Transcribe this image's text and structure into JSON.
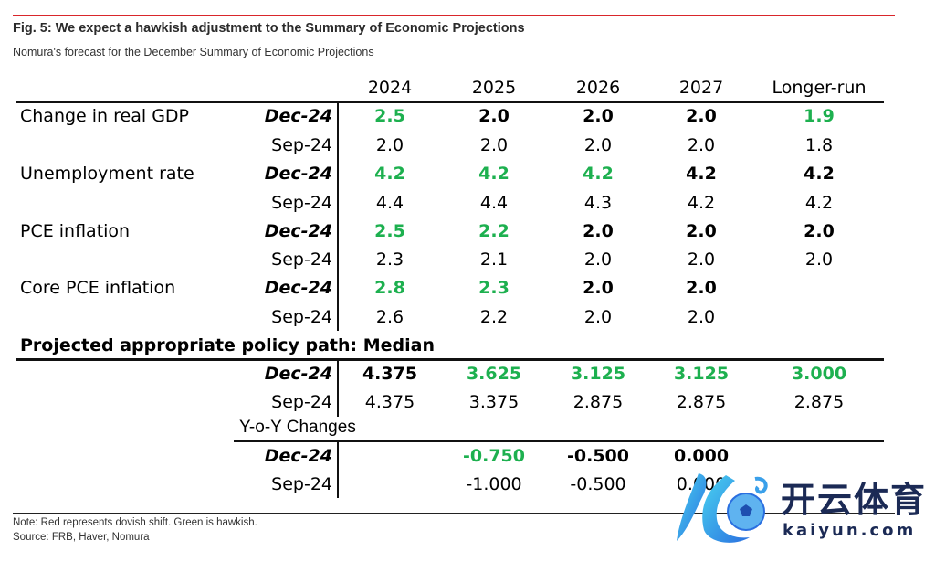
{
  "figure": {
    "title": "Fig. 5: We expect a hawkish adjustment to the Summary of Economic Projections",
    "subtitle": "Nomura's forecast for the December Summary of Economic Projections"
  },
  "columns": [
    "2024",
    "2025",
    "2026",
    "2027",
    "Longer-run"
  ],
  "colors": {
    "hawkish": "#1db04f",
    "dovish": "#d9262b",
    "topline": "#d9262b"
  },
  "rows": [
    {
      "label": "Change in real GDP",
      "vintage": "Dec-24",
      "values": [
        "2.5",
        "2.0",
        "2.0",
        "2.0",
        "1.9"
      ],
      "styles": [
        "green",
        "bold",
        "bold",
        "bold",
        "green"
      ]
    },
    {
      "label": "",
      "vintage": "Sep-24",
      "values": [
        "2.0",
        "2.0",
        "2.0",
        "2.0",
        "1.8"
      ]
    },
    {
      "label": "Unemployment rate",
      "vintage": "Dec-24",
      "values": [
        "4.2",
        "4.2",
        "4.2",
        "4.2",
        "4.2"
      ],
      "styles": [
        "green",
        "green",
        "green",
        "bold",
        "bold"
      ]
    },
    {
      "label": "",
      "vintage": "Sep-24",
      "values": [
        "4.4",
        "4.4",
        "4.3",
        "4.2",
        "4.2"
      ]
    },
    {
      "label": "PCE inflation",
      "vintage": "Dec-24",
      "values": [
        "2.5",
        "2.2",
        "2.0",
        "2.0",
        "2.0"
      ],
      "styles": [
        "green",
        "green",
        "bold",
        "bold",
        "bold"
      ]
    },
    {
      "label": "",
      "vintage": "Sep-24",
      "values": [
        "2.3",
        "2.1",
        "2.0",
        "2.0",
        "2.0"
      ]
    },
    {
      "label": "Core PCE inflation",
      "vintage": "Dec-24",
      "values": [
        "2.8",
        "2.3",
        "2.0",
        "2.0",
        ""
      ],
      "styles": [
        "green",
        "green",
        "bold",
        "bold",
        ""
      ]
    },
    {
      "label": "",
      "vintage": "Sep-24",
      "values": [
        "2.6",
        "2.2",
        "2.0",
        "2.0",
        ""
      ]
    }
  ],
  "policy": {
    "section_title": "Projected appropriate policy path: Median",
    "rows": [
      {
        "vintage": "Dec-24",
        "values": [
          "4.375",
          "3.625",
          "3.125",
          "3.125",
          "3.000"
        ],
        "styles": [
          "bold",
          "green",
          "green",
          "green",
          "green"
        ]
      },
      {
        "vintage": "Sep-24",
        "values": [
          "4.375",
          "3.375",
          "2.875",
          "2.875",
          "2.875"
        ]
      }
    ]
  },
  "yoy": {
    "title": "Y-o-Y Changes",
    "rows": [
      {
        "vintage": "Dec-24",
        "values": [
          "",
          "-0.750",
          "-0.500",
          "0.000",
          ""
        ],
        "styles": [
          "",
          "green",
          "bold",
          "bold",
          ""
        ]
      },
      {
        "vintage": "Sep-24",
        "values": [
          "",
          "-1.000",
          "-0.500",
          "0.000",
          ""
        ]
      }
    ]
  },
  "footer": {
    "note": "Note: Red represents dovish shift. Green is hawkish.",
    "source": "Source: FRB, Haver, Nomura"
  },
  "watermark": {
    "cn": "开云体育",
    "en": "kaiyun.com"
  }
}
